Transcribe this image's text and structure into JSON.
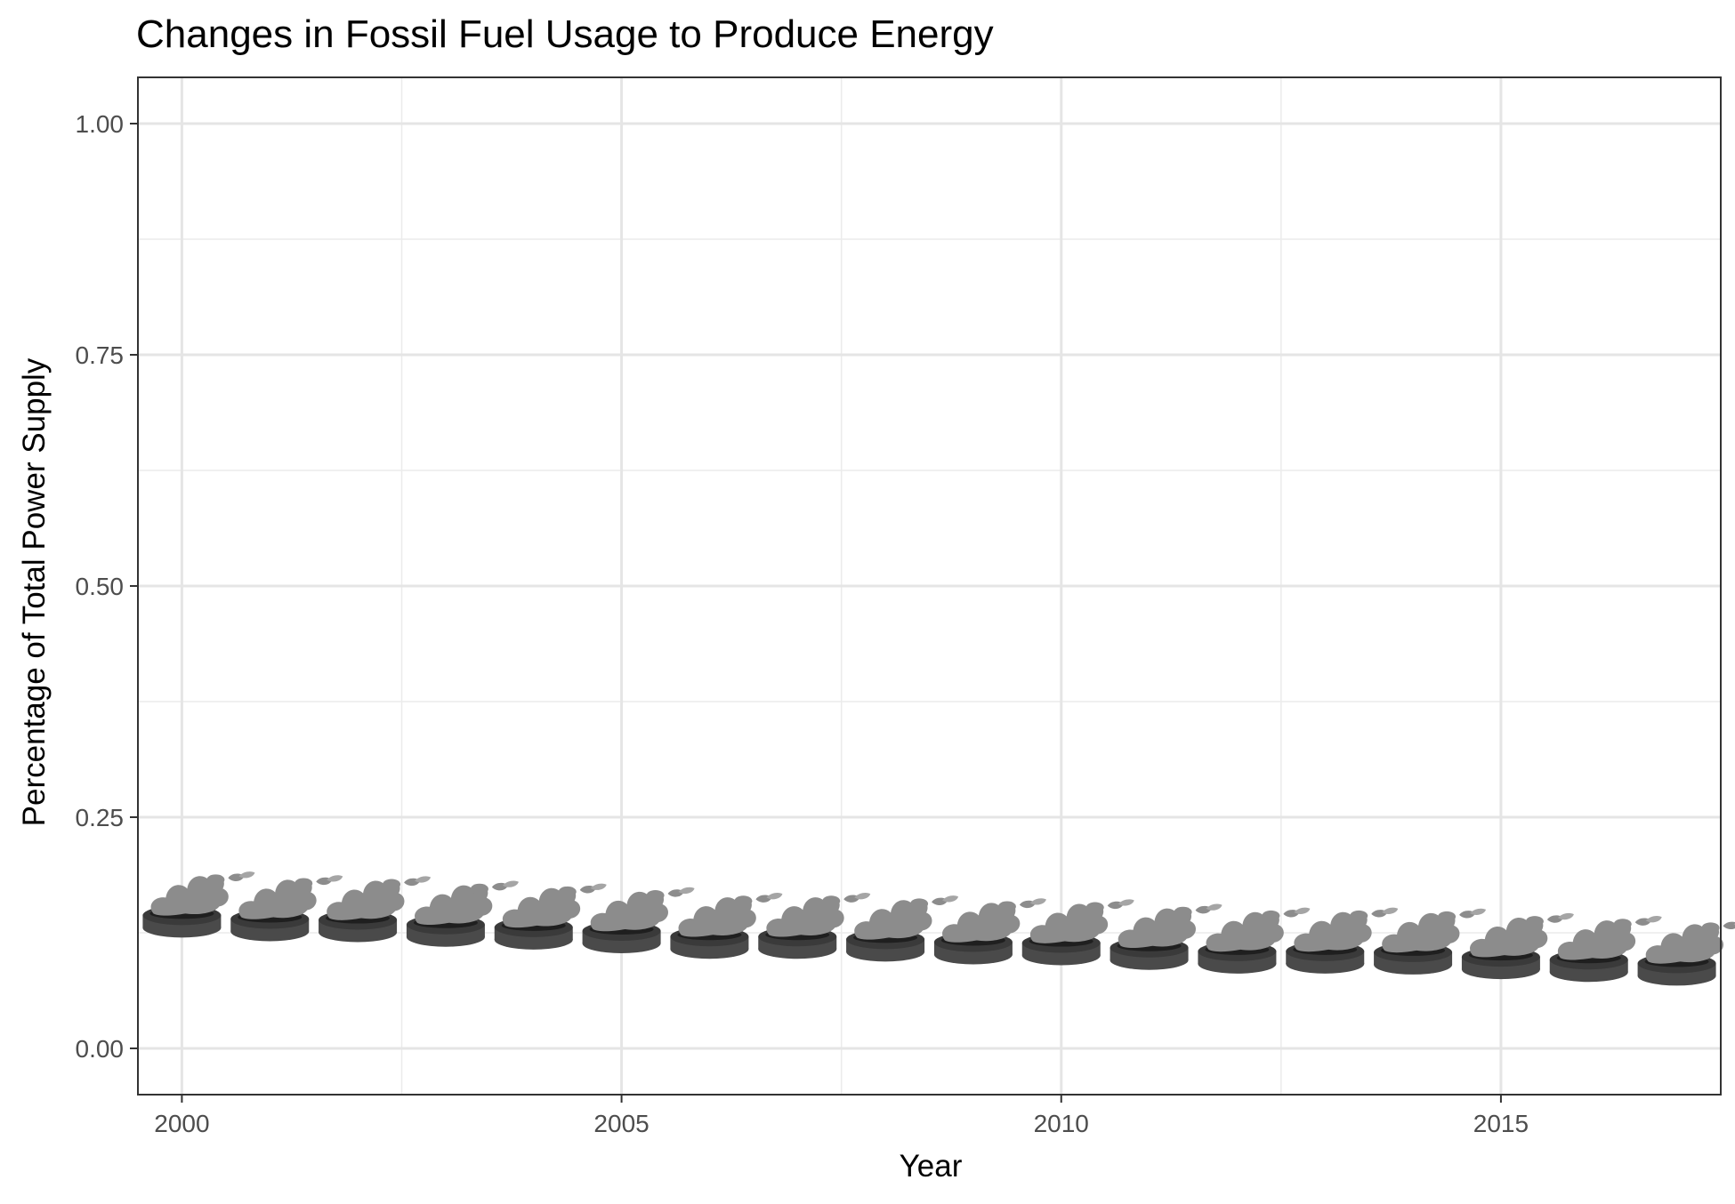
{
  "chart_data": {
    "type": "scatter",
    "title": "Changes in Fossil Fuel Usage to Produce Energy",
    "xlabel": "Year",
    "ylabel": "Percentage of Total Power Supply",
    "xlim": [
      1999.5,
      2017.5
    ],
    "ylim": [
      -0.05,
      1.05
    ],
    "x_ticks": [
      2000,
      2005,
      2010,
      2015
    ],
    "x_tick_labels": [
      "2000",
      "2005",
      "2010",
      "2015"
    ],
    "y_ticks": [
      0,
      0.25,
      0.5,
      0.75,
      1
    ],
    "y_tick_labels": [
      "0.00",
      "0.25",
      "0.50",
      "0.75",
      "1.00"
    ],
    "grid": true,
    "marker_icon": "smoking-coal-pile-icon",
    "marker_colors": {
      "pile": "#4a4a4a",
      "smoke": "#8c8c8c"
    },
    "points": [
      {
        "x": 2000,
        "y": 0.142
      },
      {
        "x": 2001,
        "y": 0.138
      },
      {
        "x": 2002,
        "y": 0.137
      },
      {
        "x": 2003,
        "y": 0.132
      },
      {
        "x": 2004,
        "y": 0.129
      },
      {
        "x": 2005,
        "y": 0.125
      },
      {
        "x": 2006,
        "y": 0.119
      },
      {
        "x": 2007,
        "y": 0.119
      },
      {
        "x": 2008,
        "y": 0.116
      },
      {
        "x": 2009,
        "y": 0.113
      },
      {
        "x": 2010,
        "y": 0.112
      },
      {
        "x": 2011,
        "y": 0.107
      },
      {
        "x": 2012,
        "y": 0.103
      },
      {
        "x": 2013,
        "y": 0.103
      },
      {
        "x": 2014,
        "y": 0.102
      },
      {
        "x": 2015,
        "y": 0.097
      },
      {
        "x": 2016,
        "y": 0.094
      },
      {
        "x": 2017,
        "y": 0.09
      }
    ]
  }
}
